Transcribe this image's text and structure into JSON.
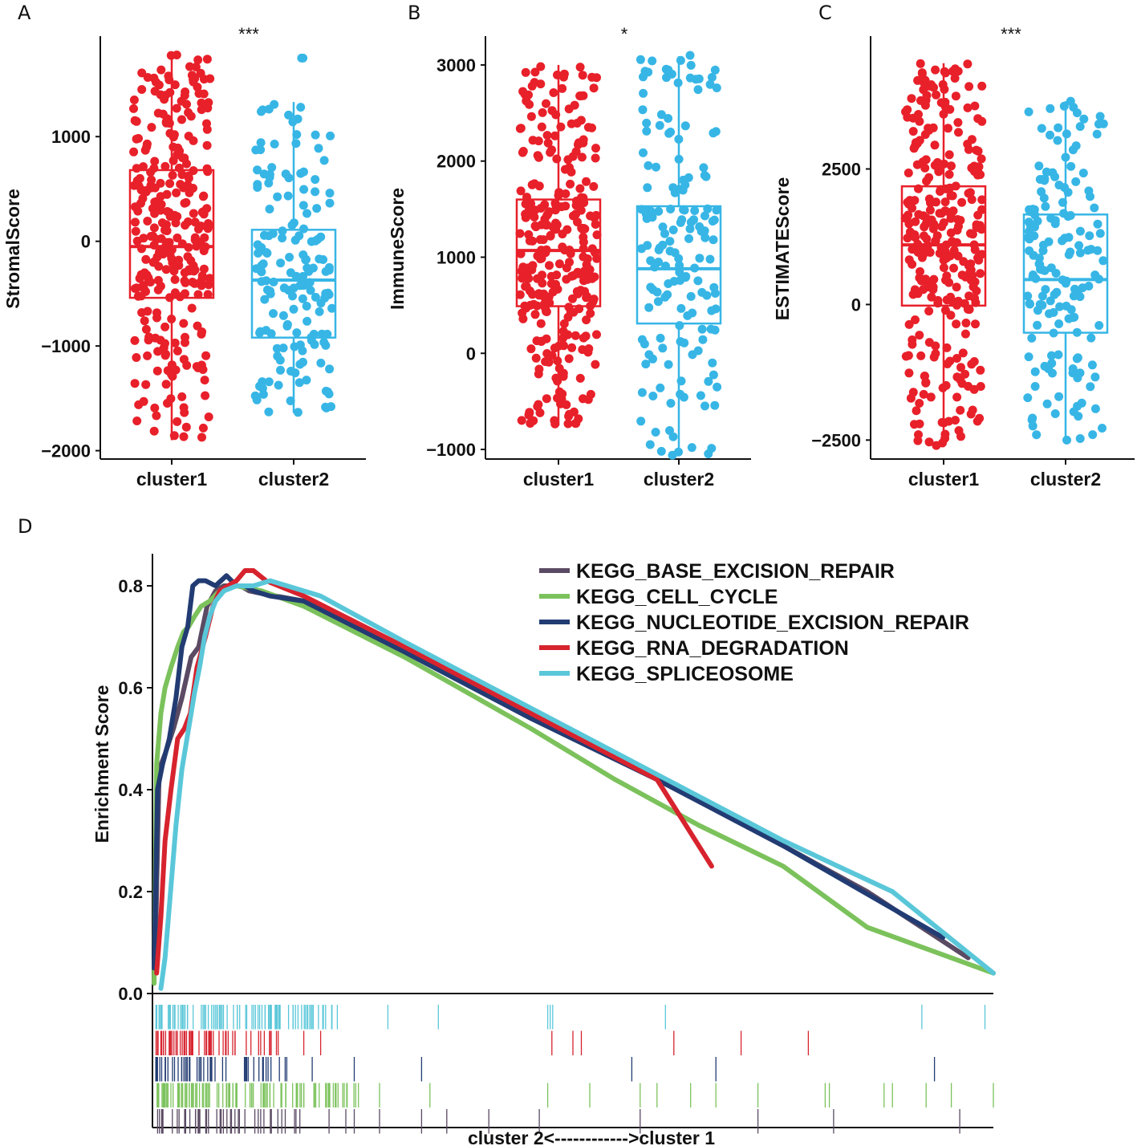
{
  "chart_data": [
    {
      "panel": "A",
      "type": "boxplot",
      "ylabel": "StromalScore",
      "ylim": [
        -2080,
        1960
      ],
      "yticks": [
        1000,
        0,
        -1000,
        -2000
      ],
      "ytick_labels": [
        "1000",
        "0",
        "−1000",
        "−2000"
      ],
      "categories": [
        "cluster1",
        "cluster2"
      ],
      "significance": "***",
      "boxes": [
        {
          "name": "cluster1",
          "color": "#e8202a",
          "whisker_low": -1900,
          "q1": -540,
          "median": -50,
          "q3": 680,
          "whisker_high": 1780
        },
        {
          "name": "cluster2",
          "color": "#37b6e6",
          "whisker_low": -1640,
          "q1": -920,
          "median": -370,
          "q3": 110,
          "whisker_high": 1330
        }
      ],
      "points_per_group": [
        300,
        160
      ],
      "extra_points": [
        [
          1,
          1750
        ],
        [
          1,
          1750
        ],
        [
          0,
          1780
        ]
      ]
    },
    {
      "panel": "B",
      "type": "boxplot",
      "ylabel": "ImmuneScore",
      "ylim": [
        -1100,
        3300
      ],
      "yticks": [
        3000,
        2000,
        1000,
        0,
        -1000
      ],
      "ytick_labels": [
        "3000",
        "2000",
        "1000",
        "0",
        "−1000"
      ],
      "categories": [
        "cluster1",
        "cluster2"
      ],
      "significance": "*",
      "boxes": [
        {
          "name": "cluster1",
          "color": "#e8202a",
          "whisker_low": -750,
          "q1": 490,
          "median": 1070,
          "q3": 1600,
          "whisker_high": 3000
        },
        {
          "name": "cluster2",
          "color": "#37b6e6",
          "whisker_low": -1050,
          "q1": 310,
          "median": 880,
          "q3": 1530,
          "whisker_high": 3090
        }
      ],
      "points_per_group": [
        300,
        160
      ],
      "extra_points": [
        [
          1,
          3100
        ],
        [
          1,
          -1060
        ]
      ]
    },
    {
      "panel": "C",
      "type": "boxplot",
      "ylabel": "ESTIMATEScore",
      "ylim": [
        -2850,
        4950
      ],
      "yticks": [
        2500,
        0,
        -2500
      ],
      "ytick_labels": [
        "2500",
        "0",
        "−2500"
      ],
      "categories": [
        "cluster1",
        "cluster2"
      ],
      "significance": "***",
      "boxes": [
        {
          "name": "cluster1",
          "color": "#e8202a",
          "whisker_low": -2600,
          "q1": -20,
          "median": 1100,
          "q3": 2180,
          "whisker_high": 4450
        },
        {
          "name": "cluster2",
          "color": "#37b6e6",
          "whisker_low": -2500,
          "q1": -520,
          "median": 460,
          "q3": 1660,
          "whisker_high": 3750
        }
      ],
      "points_per_group": [
        300,
        160
      ],
      "extra_points": [
        [
          1,
          3750
        ],
        [
          1,
          -2500
        ],
        [
          0,
          -2600
        ]
      ]
    },
    {
      "panel": "D",
      "type": "line",
      "title": "",
      "ylabel": "Enrichment Score",
      "xlabel": "cluster 2<------------>cluster 1",
      "xlim": [
        0,
        100
      ],
      "ylim": [
        0.0,
        0.85
      ],
      "yticks": [
        0.0,
        0.2,
        0.4,
        0.6,
        0.8
      ],
      "ytick_labels": [
        "0.0",
        "0.2",
        "0.4",
        "0.6",
        "0.8"
      ],
      "series": [
        {
          "name": "KEGG_BASE_EXCISION_REPAIR",
          "color": "#5a4a63",
          "x": [
            0.3,
            0.8,
            1.5,
            2.5,
            3.5,
            4.6,
            5.5,
            6.5,
            7.5,
            8.5,
            9.5,
            10.5,
            11.5,
            13,
            18,
            30,
            45,
            60,
            75,
            85,
            97
          ],
          "y": [
            0.05,
            0.44,
            0.47,
            0.52,
            0.58,
            0.66,
            0.68,
            0.76,
            0.79,
            0.8,
            0.8,
            0.8,
            0.79,
            0.785,
            0.77,
            0.67,
            0.54,
            0.42,
            0.29,
            0.2,
            0.07
          ]
        },
        {
          "name": "KEGG_CELL_CYCLE",
          "color": "#7cc25c",
          "x": [
            0.2,
            0.5,
            1.0,
            1.5,
            2.2,
            3.0,
            3.7,
            4.3,
            5.0,
            5.8,
            6.8,
            8.0,
            10.0,
            13.0,
            18.0,
            30.0,
            45.0,
            55.0,
            65.0,
            75.0,
            85.0,
            100
          ],
          "y": [
            0.02,
            0.45,
            0.55,
            0.6,
            0.64,
            0.68,
            0.71,
            0.72,
            0.74,
            0.76,
            0.77,
            0.79,
            0.8,
            0.79,
            0.76,
            0.66,
            0.52,
            0.42,
            0.33,
            0.25,
            0.13,
            0.04
          ]
        },
        {
          "name": "KEGG_NUCLEOTIDE_EXCISION_REPAIR",
          "color": "#223c73",
          "x": [
            0.2,
            0.6,
            1.2,
            2.0,
            2.8,
            3.5,
            4.2,
            4.8,
            5.5,
            6.3,
            7.5,
            8.8,
            10.0,
            11.0,
            12.0,
            14.0,
            18.0,
            30.0,
            45.0,
            60.0,
            75.0,
            94.0
          ],
          "y": [
            0.05,
            0.4,
            0.45,
            0.5,
            0.58,
            0.68,
            0.72,
            0.8,
            0.81,
            0.81,
            0.8,
            0.82,
            0.8,
            0.8,
            0.79,
            0.78,
            0.77,
            0.67,
            0.54,
            0.42,
            0.29,
            0.11
          ]
        },
        {
          "name": "KEGG_RNA_DEGRADATION",
          "color": "#d7232e",
          "x": [
            0.5,
            1.0,
            1.5,
            2.2,
            3.0,
            3.8,
            4.5,
            5.3,
            6.3,
            7.2,
            8.0,
            9.0,
            10.0,
            11.0,
            12.0,
            13.5,
            15.0,
            18.0,
            30.0,
            45.0,
            60.0,
            66.5
          ],
          "y": [
            0.04,
            0.15,
            0.3,
            0.4,
            0.5,
            0.52,
            0.55,
            0.64,
            0.7,
            0.76,
            0.79,
            0.8,
            0.81,
            0.83,
            0.83,
            0.81,
            0.8,
            0.78,
            0.68,
            0.55,
            0.42,
            0.25
          ]
        },
        {
          "name": "KEGG_SPLICEOSOME",
          "color": "#5ac7d9",
          "x": [
            1.0,
            1.5,
            2.0,
            2.8,
            3.5,
            4.3,
            5.0,
            5.6,
            6.2,
            6.8,
            7.5,
            8.5,
            10.0,
            12.0,
            14.0,
            16.0,
            20.0,
            30.0,
            45.0,
            60.0,
            75.0,
            88.0,
            100
          ],
          "y": [
            0.01,
            0.07,
            0.17,
            0.33,
            0.44,
            0.52,
            0.59,
            0.64,
            0.7,
            0.74,
            0.77,
            0.79,
            0.8,
            0.8,
            0.81,
            0.8,
            0.78,
            0.69,
            0.56,
            0.43,
            0.3,
            0.2,
            0.04
          ]
        }
      ],
      "rug_rows": [
        {
          "name": "KEGG_SPLICEOSOME",
          "color": "#5ac7d9",
          "dense_until": 22,
          "count": 95,
          "isolated": [
            28,
            34,
            47,
            47.3,
            47.6,
            61,
            91.5,
            99
          ]
        },
        {
          "name": "KEGG_RNA_DEGRADATION",
          "color": "#d7232e",
          "dense_until": 15,
          "count": 60,
          "isolated": [
            18,
            20,
            47.5,
            50,
            51,
            62,
            70,
            78
          ]
        },
        {
          "name": "KEGG_NUCLEOTIDE_EXCISION_REPAIR",
          "color": "#223c73",
          "dense_until": 17,
          "count": 50,
          "isolated": [
            19,
            24,
            32,
            57,
            67,
            93
          ]
        },
        {
          "name": "KEGG_CELL_CYCLE",
          "color": "#7cc25c",
          "dense_until": 25,
          "count": 110,
          "isolated": [
            27,
            33,
            47,
            52,
            58,
            60,
            64,
            67,
            72,
            80,
            80.5,
            87,
            88,
            92,
            95,
            100
          ]
        },
        {
          "name": "KEGG_BASE_EXCISION_REPAIR",
          "color": "#5a4a63",
          "dense_until": 18,
          "count": 45,
          "isolated": [
            21,
            23,
            24,
            27,
            32,
            35,
            40,
            46,
            58,
            72,
            81,
            96
          ]
        }
      ]
    }
  ],
  "panel_letters": [
    "A",
    "B",
    "C",
    "D"
  ]
}
